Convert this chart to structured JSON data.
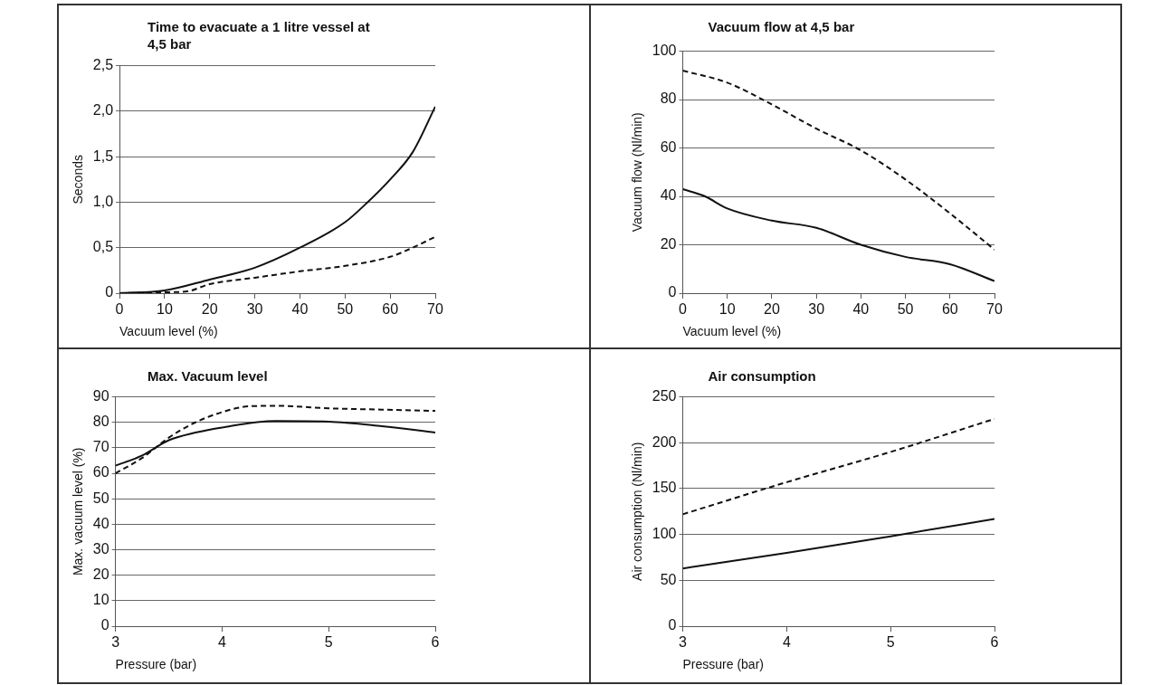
{
  "chart_data": [
    {
      "type": "line",
      "title": "Time to evacuate a 1 litre vessel at 4,5 bar",
      "xlabel": "Vacuum level (%)",
      "ylabel": "Seconds",
      "xlim": [
        0,
        70
      ],
      "xticks": [
        0,
        10,
        20,
        30,
        40,
        50,
        60,
        70
      ],
      "ylim": [
        0,
        2.5
      ],
      "yticks": [
        0,
        {
          "value": 0.5,
          "label": "0,5"
        },
        {
          "value": 1,
          "label": "1,0"
        },
        {
          "value": 1.5,
          "label": "1,5"
        },
        {
          "value": 2,
          "label": "2,0"
        },
        {
          "value": 2.5,
          "label": "2,5"
        }
      ],
      "grid": "y",
      "marker": "none",
      "series": [
        {
          "color": "#111111",
          "line_style": "solid",
          "x": [
            0,
            10,
            20,
            30,
            40,
            50,
            55,
            60,
            65,
            70
          ],
          "values": [
            0,
            0.03,
            0.15,
            0.28,
            0.5,
            0.78,
            1.0,
            1.25,
            1.55,
            2.05
          ]
        },
        {
          "color": "#111111",
          "line_style": "dashed",
          "x": [
            0,
            10,
            15,
            20,
            30,
            40,
            50,
            60,
            65,
            70
          ],
          "values": [
            0,
            0.01,
            0.02,
            0.1,
            0.17,
            0.24,
            0.3,
            0.4,
            0.5,
            0.62
          ]
        }
      ]
    },
    {
      "type": "line",
      "title": "Vacuum flow at 4,5 bar",
      "xlabel": "Vacuum level (%)",
      "ylabel": "Vacuum flow (Nl/min)",
      "xlim": [
        0,
        70
      ],
      "xticks": [
        0,
        10,
        20,
        30,
        40,
        50,
        60,
        70
      ],
      "ylim": [
        0,
        100
      ],
      "yticks": [
        0,
        20,
        40,
        60,
        80,
        100
      ],
      "grid": "y",
      "marker": "none",
      "series": [
        {
          "color": "#111111",
          "line_style": "solid",
          "x": [
            0,
            5,
            10,
            20,
            30,
            40,
            50,
            60,
            70
          ],
          "values": [
            43,
            40,
            35,
            30,
            27,
            20,
            15,
            12,
            5
          ]
        },
        {
          "color": "#111111",
          "line_style": "dashed",
          "x": [
            0,
            10,
            20,
            30,
            40,
            50,
            60,
            70
          ],
          "values": [
            92,
            87,
            78,
            68,
            59,
            47,
            33,
            18
          ]
        }
      ]
    },
    {
      "type": "line",
      "title": "Max. Vacuum level",
      "xlabel": "Pressure (bar)",
      "ylabel": "Max. vacuum level (%)",
      "xlim": [
        3,
        6
      ],
      "xticks": [
        3,
        4,
        5,
        6
      ],
      "ylim": [
        0,
        90
      ],
      "yticks": [
        0,
        10,
        20,
        30,
        40,
        50,
        60,
        70,
        80,
        90
      ],
      "grid": "y",
      "marker": "none",
      "series": [
        {
          "color": "#111111",
          "line_style": "solid",
          "x": [
            3,
            3.25,
            3.5,
            3.75,
            4,
            4.5,
            5,
            5.5,
            6
          ],
          "values": [
            63,
            67,
            73,
            76,
            78,
            80.5,
            80.3,
            78.5,
            76
          ]
        },
        {
          "color": "#111111",
          "line_style": "dashed",
          "x": [
            3,
            3.25,
            3.5,
            3.75,
            4,
            4.25,
            4.5,
            5,
            5.5,
            6
          ],
          "values": [
            60,
            66,
            74,
            80,
            84,
            86.3,
            86.5,
            85.5,
            85,
            84.5
          ]
        }
      ]
    },
    {
      "type": "line",
      "title": "Air consumption",
      "xlabel": "Pressure (bar)",
      "ylabel": "Air consumption (Nl/min)",
      "xlim": [
        3,
        6
      ],
      "xticks": [
        3,
        4,
        5,
        6
      ],
      "ylim": [
        0,
        250
      ],
      "yticks": [
        0,
        50,
        100,
        150,
        200,
        250
      ],
      "grid": "y",
      "marker": "none",
      "series": [
        {
          "color": "#111111",
          "line_style": "solid",
          "x": [
            3,
            4,
            5,
            6
          ],
          "values": [
            63,
            80,
            98,
            117
          ]
        },
        {
          "color": "#111111",
          "line_style": "dashed",
          "x": [
            3,
            4,
            5,
            6
          ],
          "values": [
            122,
            157,
            190,
            226
          ]
        }
      ]
    }
  ]
}
